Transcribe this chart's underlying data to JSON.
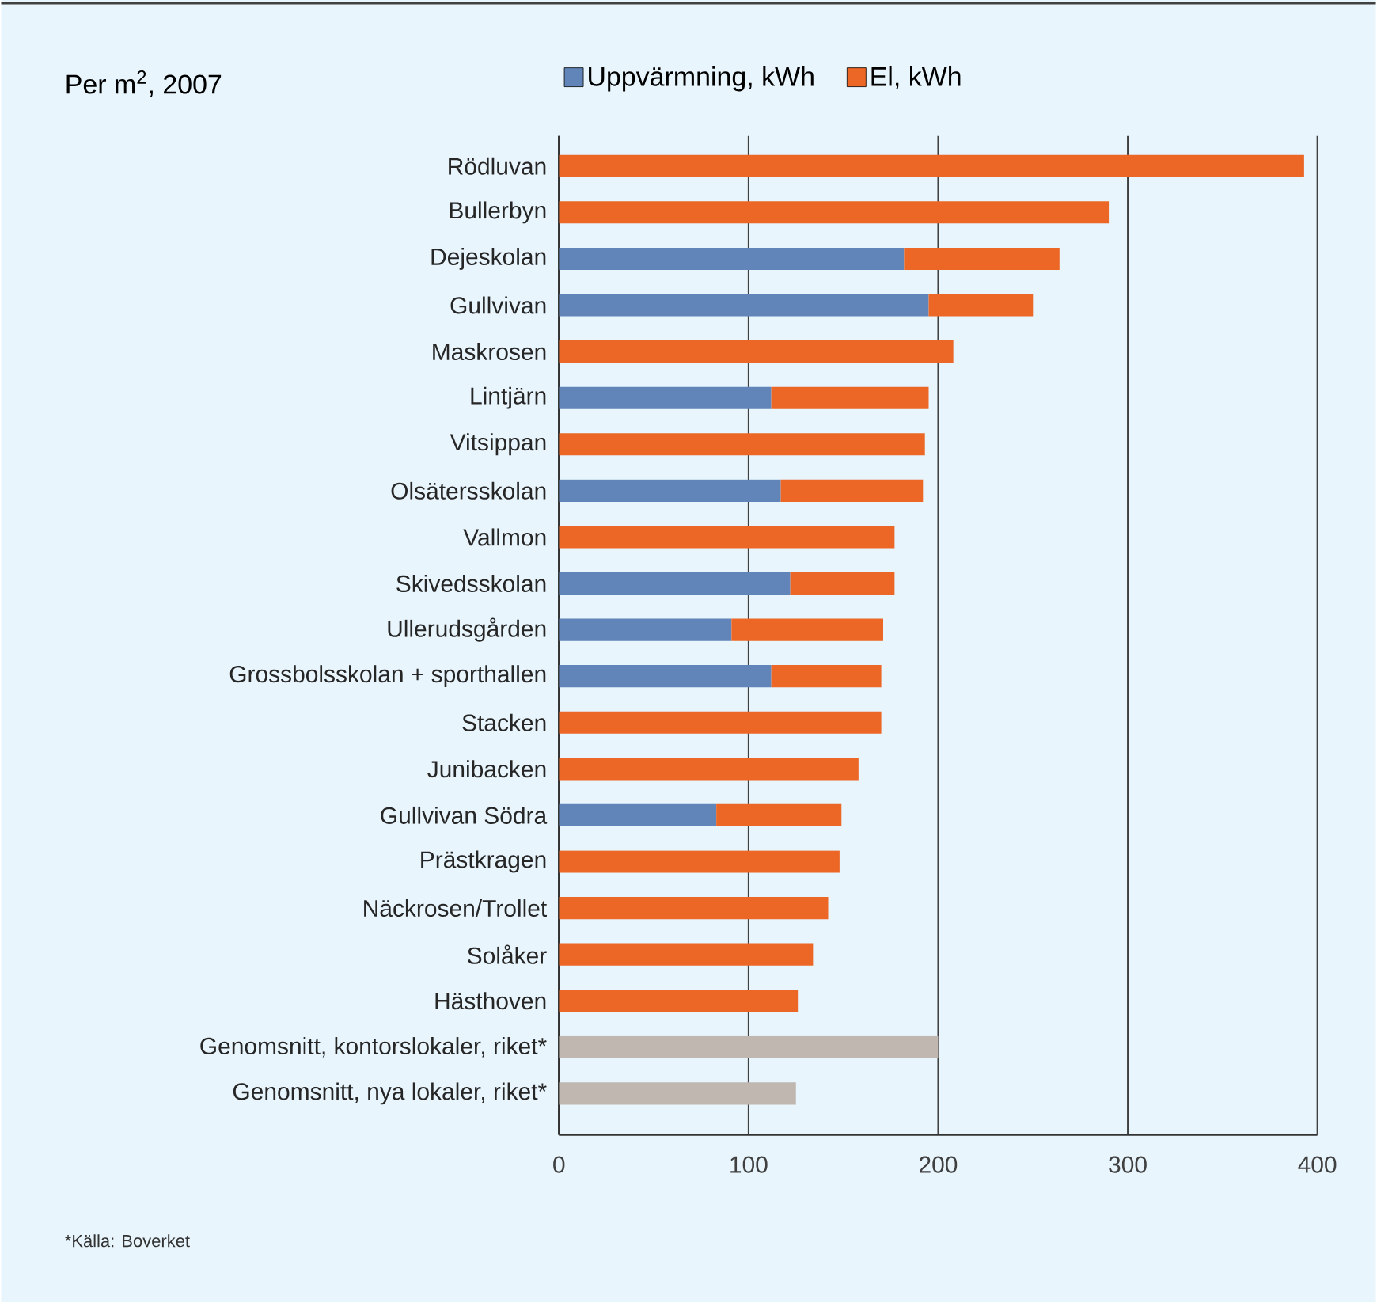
{
  "chart_data": {
    "type": "bar",
    "orientation": "horizontal",
    "stacked": true,
    "title": "Per m$^{2}$, 2007",
    "categories": [
      "Rödluvan",
      "Bullerbyn",
      "Dejeskolan",
      "Gullvivan",
      "Maskrosen",
      "Lintjärn",
      "Vitsippan",
      "Olsätersskolan",
      "Vallmon",
      "Skivedsskolan",
      "Ullerudsgården",
      "Grossbolsskolan + sporthallen",
      "Stacken",
      "Junibacken",
      "Gullvivan Södra",
      "Prästkragen",
      "Näckrosen/Trollet",
      "Solåker",
      "Hästhoven",
      "Genomsnitt, kontorslokaler, riket*",
      "Genomsnitt, nya lokaler, riket*"
    ],
    "series": [
      {
        "name": "Uppvärmning, kWh",
        "color": "#6185b8",
        "values": [
          null,
          null,
          182,
          195,
          null,
          112,
          null,
          117,
          null,
          122,
          91,
          112,
          null,
          null,
          83,
          null,
          null,
          null,
          null,
          null,
          null
        ]
      },
      {
        "name": "El, kWh",
        "color": "#ec6625",
        "values": [
          393,
          290,
          82,
          55,
          208,
          83,
          193,
          75,
          177,
          55,
          80,
          58,
          170,
          158,
          66,
          148,
          142,
          134,
          126,
          null,
          null
        ]
      },
      {
        "color": "#bfb7b0",
        "values": [
          null,
          null,
          null,
          null,
          null,
          null,
          null,
          null,
          null,
          null,
          null,
          null,
          null,
          null,
          null,
          null,
          null,
          null,
          null,
          200,
          125
        ]
      }
    ],
    "xlim": [
      0,
      400
    ],
    "xticks": [
      0,
      100,
      200,
      300,
      400
    ],
    "grid": "x",
    "legend": "top",
    "annotations": [
      "*Källa: Boverket"
    ]
  }
}
